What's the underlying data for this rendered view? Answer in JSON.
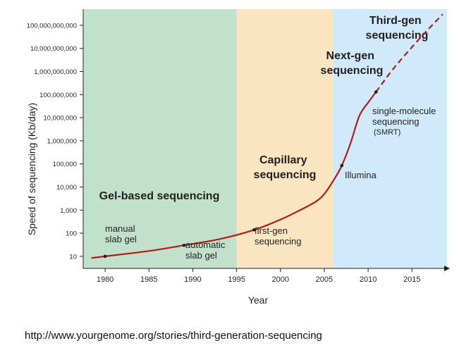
{
  "source_url": "http://www.yourgenome.org/stories/third-generation-sequencing",
  "chart_data": {
    "type": "line",
    "xlabel": "Year",
    "ylabel": "Speed of sequencing (Kb/day)",
    "y_scale": "log",
    "xlim": [
      1977.5,
      2019
    ],
    "ylim": [
      3,
      500000000000
    ],
    "x_ticks": [
      1980,
      1985,
      1990,
      1995,
      2000,
      2005,
      2010,
      2015
    ],
    "x_tick_labels": [
      "1980",
      "1985",
      "1990",
      "1995",
      "2000",
      "2005",
      "2010",
      "2015"
    ],
    "y_ticks": [
      10,
      100,
      1000,
      10000,
      100000,
      1000000,
      10000000,
      100000000,
      1000000000,
      10000000000,
      100000000000
    ],
    "y_tick_labels": [
      "10",
      "100",
      "1,000",
      "10,000",
      "100,000",
      "1,000,000",
      "10,000,000",
      "100,000,000",
      "1,000,000,000",
      "10,000,000,000",
      "100,000,000,000"
    ],
    "grid": false,
    "eras": [
      {
        "label": "Gel-based sequencing",
        "x_start": 1977.5,
        "x_end": 1995,
        "color": "#c2e1cc"
      },
      {
        "label": "Capillary sequencing",
        "x_start": 1995,
        "x_end": 2006,
        "color": "#fbe5c1"
      },
      {
        "label": "Next-gen sequencing",
        "x_start": 2006,
        "x_end": 2019,
        "color": "#d0e9fb"
      }
    ],
    "era_titles": [
      "Gel-based sequencing",
      "Capillary sequencing",
      "Next-gen sequencing",
      "Third-gen sequencing"
    ],
    "series": [
      {
        "color": "#b31a1a",
        "solid_points": [
          [
            1978.5,
            8.5
          ],
          [
            1980,
            10
          ],
          [
            1985,
            17
          ],
          [
            1989,
            30
          ],
          [
            1993,
            55
          ],
          [
            1997,
            140
          ],
          [
            2000,
            390
          ],
          [
            2002,
            900
          ],
          [
            2004,
            2300
          ],
          [
            2005,
            5000
          ],
          [
            2006,
            18000
          ],
          [
            2007,
            85000
          ],
          [
            2008,
            800000
          ],
          [
            2009,
            12000000
          ],
          [
            2010,
            45000000
          ],
          [
            2010.9,
            130000000
          ]
        ],
        "dashed_points": [
          [
            2010.9,
            130000000
          ],
          [
            2013,
            1500000000
          ],
          [
            2016,
            30000000000
          ],
          [
            2018.5,
            300000000000
          ]
        ]
      }
    ],
    "annotations": [
      {
        "label": "manual slab gel",
        "x": 1980,
        "y": 10
      },
      {
        "label": "automatic slab gel",
        "x": 1989,
        "y": 30
      },
      {
        "label": "first-gen sequencing",
        "x": 1997,
        "y": 140
      },
      {
        "label": "Illumina",
        "x": 2007,
        "y": 85000
      },
      {
        "label": "single-molecule sequencing (SMRT)",
        "x": 2010.9,
        "y": 130000000
      }
    ]
  }
}
